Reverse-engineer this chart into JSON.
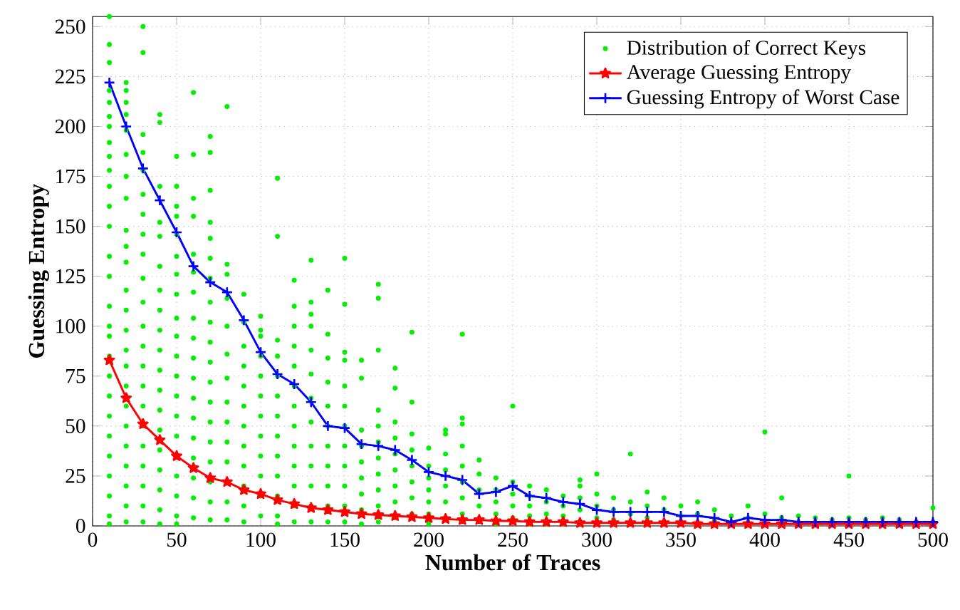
{
  "chart_data": {
    "type": "line",
    "xlabel": "Number of Traces",
    "ylabel": "Guessing Entropy",
    "xlim": [
      0,
      500
    ],
    "ylim": [
      0,
      255
    ],
    "xticks": [
      0,
      50,
      100,
      150,
      200,
      250,
      300,
      350,
      400,
      450,
      500
    ],
    "yticks": [
      0,
      25,
      50,
      75,
      100,
      125,
      150,
      175,
      200,
      225,
      250
    ],
    "grid": true,
    "legend": "top right",
    "series": [
      {
        "name": "Distribution of Correct Keys",
        "type": "scatter",
        "color": "#00ee00",
        "marker": "circle",
        "x": [
          10,
          10,
          10,
          10,
          10,
          10,
          10,
          10,
          10,
          10,
          10,
          10,
          10,
          10,
          10,
          10,
          10,
          10,
          10,
          10,
          10,
          10,
          10,
          10,
          10,
          10,
          10,
          10,
          20,
          20,
          20,
          20,
          20,
          20,
          20,
          20,
          20,
          20,
          20,
          20,
          20,
          20,
          20,
          20,
          20,
          20,
          20,
          20,
          20,
          20,
          20,
          20,
          30,
          30,
          30,
          30,
          30,
          30,
          30,
          30,
          30,
          30,
          30,
          30,
          30,
          30,
          30,
          30,
          30,
          30,
          30,
          30,
          30,
          30,
          40,
          40,
          40,
          40,
          40,
          40,
          40,
          40,
          40,
          40,
          40,
          40,
          40,
          40,
          40,
          40,
          40,
          40,
          40,
          50,
          50,
          50,
          50,
          50,
          50,
          50,
          50,
          50,
          50,
          50,
          50,
          50,
          50,
          50,
          50,
          50,
          50,
          50,
          60,
          60,
          60,
          60,
          60,
          60,
          60,
          60,
          60,
          60,
          60,
          60,
          60,
          60,
          60,
          60,
          60,
          60,
          70,
          70,
          70,
          70,
          70,
          70,
          70,
          70,
          70,
          70,
          70,
          70,
          70,
          70,
          70,
          70,
          70,
          70,
          70,
          80,
          80,
          80,
          80,
          80,
          80,
          80,
          80,
          80,
          80,
          80,
          80,
          80,
          90,
          90,
          90,
          90,
          90,
          90,
          90,
          90,
          90,
          90,
          90,
          90,
          100,
          100,
          100,
          100,
          100,
          100,
          100,
          100,
          100,
          100,
          100,
          100,
          110,
          110,
          110,
          110,
          110,
          110,
          110,
          110,
          110,
          110,
          110,
          110,
          110,
          120,
          120,
          120,
          120,
          120,
          120,
          120,
          120,
          120,
          120,
          120,
          120,
          120,
          130,
          130,
          130,
          130,
          130,
          130,
          130,
          130,
          130,
          130,
          130,
          130,
          130,
          140,
          140,
          140,
          140,
          140,
          140,
          140,
          140,
          140,
          140,
          140,
          150,
          150,
          150,
          150,
          150,
          150,
          150,
          150,
          150,
          150,
          150,
          150,
          160,
          160,
          160,
          160,
          160,
          160,
          160,
          160,
          160,
          170,
          170,
          170,
          170,
          170,
          170,
          170,
          170,
          170,
          170,
          170,
          180,
          180,
          180,
          180,
          180,
          180,
          180,
          180,
          180,
          190,
          190,
          190,
          190,
          190,
          190,
          190,
          190,
          200,
          200,
          200,
          200,
          200,
          200,
          200,
          210,
          210,
          210,
          210,
          210,
          210,
          220,
          220,
          220,
          220,
          220,
          220,
          220,
          220,
          230,
          230,
          230,
          230,
          240,
          240,
          240,
          240,
          240,
          250,
          250,
          250,
          250,
          250,
          260,
          260,
          260,
          260,
          260,
          270,
          270,
          270,
          270,
          280,
          280,
          280,
          280,
          290,
          290,
          290,
          290,
          290,
          300,
          300,
          300,
          300,
          310,
          310,
          310,
          320,
          320,
          320,
          320,
          330,
          330,
          330,
          340,
          340,
          340,
          350,
          350,
          350,
          360,
          360,
          370,
          370,
          380,
          390,
          390,
          400,
          400,
          410,
          410,
          420,
          430,
          440,
          450,
          450,
          460,
          470,
          480,
          490,
          500,
          500
        ],
        "values": [
          255,
          241,
          232,
          218,
          212,
          205,
          200,
          192,
          185,
          178,
          170,
          160,
          150,
          135,
          125,
          110,
          100,
          95,
          85,
          75,
          65,
          55,
          45,
          35,
          25,
          15,
          5,
          1,
          222,
          218,
          212,
          206,
          198,
          186,
          175,
          164,
          148,
          140,
          132,
          118,
          108,
          98,
          88,
          80,
          70,
          60,
          50,
          40,
          30,
          20,
          10,
          2,
          250,
          237,
          196,
          187,
          178,
          166,
          156,
          146,
          136,
          124,
          112,
          100,
          90,
          80,
          70,
          60,
          50,
          40,
          30,
          20,
          10,
          2,
          206,
          202,
          170,
          152,
          145,
          130,
          118,
          108,
          98,
          88,
          78,
          68,
          58,
          48,
          38,
          28,
          18,
          8,
          1,
          185,
          170,
          160,
          155,
          146,
          135,
          126,
          116,
          104,
          95,
          85,
          75,
          65,
          55,
          45,
          25,
          15,
          5,
          1,
          217,
          186,
          164,
          155,
          136,
          127,
          117,
          104,
          94,
          84,
          74,
          64,
          54,
          44,
          34,
          24,
          14,
          4,
          195,
          187,
          168,
          152,
          144,
          134,
          124,
          112,
          102,
          92,
          82,
          72,
          62,
          52,
          42,
          32,
          22,
          12,
          3,
          210,
          131,
          126,
          114,
          100,
          86,
          74,
          62,
          52,
          42,
          32,
          12,
          3,
          116,
          102,
          90,
          80,
          70,
          60,
          50,
          40,
          30,
          20,
          10,
          2,
          105,
          98,
          95,
          85,
          75,
          65,
          55,
          45,
          35,
          25,
          15,
          5,
          174,
          145,
          93,
          85,
          75,
          65,
          55,
          45,
          35,
          25,
          15,
          5,
          1,
          123,
          110,
          100,
          90,
          80,
          70,
          60,
          50,
          40,
          30,
          20,
          10,
          2,
          133,
          112,
          106,
          100,
          88,
          76,
          64,
          52,
          40,
          30,
          20,
          10,
          2,
          118,
          96,
          84,
          72,
          60,
          50,
          40,
          30,
          20,
          10,
          2,
          134,
          111,
          87,
          83,
          70,
          60,
          50,
          40,
          30,
          20,
          10,
          2,
          83,
          74,
          48,
          40,
          32,
          24,
          16,
          8,
          1,
          121,
          114,
          88,
          58,
          50,
          42,
          34,
          26,
          18,
          10,
          2,
          79,
          69,
          52,
          44,
          36,
          28,
          20,
          12,
          4,
          97,
          62,
          46,
          38,
          30,
          22,
          14,
          6,
          39,
          30,
          24,
          18,
          12,
          6,
          1,
          48,
          46,
          36,
          28,
          20,
          12,
          96,
          54,
          51,
          40,
          30,
          22,
          14,
          6,
          33,
          26,
          18,
          10,
          24,
          18,
          12,
          6,
          1,
          60,
          22,
          16,
          10,
          4,
          20,
          15,
          10,
          5,
          1,
          18,
          12,
          6,
          1,
          15,
          10,
          5,
          1,
          23,
          20,
          14,
          8,
          2,
          26,
          16,
          10,
          4,
          14,
          8,
          3,
          36,
          12,
          6,
          1,
          17,
          10,
          4,
          14,
          8,
          2,
          10,
          5,
          1,
          12,
          6,
          8,
          3,
          5,
          10,
          4,
          47,
          6,
          14,
          4,
          5,
          4,
          3,
          25,
          4,
          3,
          4,
          3,
          2,
          9,
          2
        ]
      },
      {
        "name": "Average Guessing Entropy",
        "color": "#ff0000",
        "marker": "star",
        "line_style": "solid",
        "x": [
          10,
          20,
          30,
          40,
          50,
          60,
          70,
          80,
          90,
          100,
          110,
          120,
          130,
          140,
          150,
          160,
          170,
          180,
          190,
          200,
          210,
          220,
          230,
          240,
          250,
          260,
          270,
          280,
          290,
          300,
          310,
          320,
          330,
          340,
          350,
          360,
          370,
          380,
          390,
          400,
          410,
          420,
          430,
          440,
          450,
          460,
          470,
          480,
          490,
          500
        ],
        "values": [
          83,
          64,
          51,
          43,
          35,
          29,
          24,
          22,
          18,
          16,
          13,
          11,
          9,
          8,
          7,
          6,
          5.5,
          5,
          4.5,
          4,
          3.5,
          3,
          3,
          2.5,
          2.5,
          2,
          2,
          2,
          1.5,
          1.5,
          1.5,
          1.5,
          1.5,
          1.5,
          1.5,
          1,
          1,
          1,
          1,
          1,
          1,
          1,
          1,
          1,
          1,
          1,
          1,
          1,
          1,
          1
        ]
      },
      {
        "name": "Guessing Entropy of Worst Case",
        "color": "#0000ff",
        "marker": "cross",
        "line_style": "solid",
        "x": [
          10,
          20,
          30,
          40,
          50,
          60,
          70,
          80,
          90,
          100,
          110,
          120,
          130,
          140,
          150,
          160,
          170,
          180,
          190,
          200,
          210,
          220,
          230,
          240,
          250,
          260,
          270,
          280,
          290,
          300,
          310,
          320,
          330,
          340,
          350,
          360,
          370,
          380,
          390,
          400,
          410,
          420,
          430,
          440,
          450,
          460,
          470,
          480,
          490,
          500
        ],
        "values": [
          222,
          200,
          179,
          163,
          147,
          130,
          122,
          117,
          103,
          87,
          76,
          71,
          62,
          50,
          49,
          41,
          40,
          38,
          33,
          27,
          25,
          23,
          16,
          17,
          20,
          15,
          14,
          12,
          11,
          8,
          7,
          7,
          7,
          7,
          5,
          5,
          4,
          2,
          4,
          3,
          3,
          2,
          2,
          2,
          2,
          2,
          2,
          2,
          2,
          2
        ]
      }
    ]
  }
}
